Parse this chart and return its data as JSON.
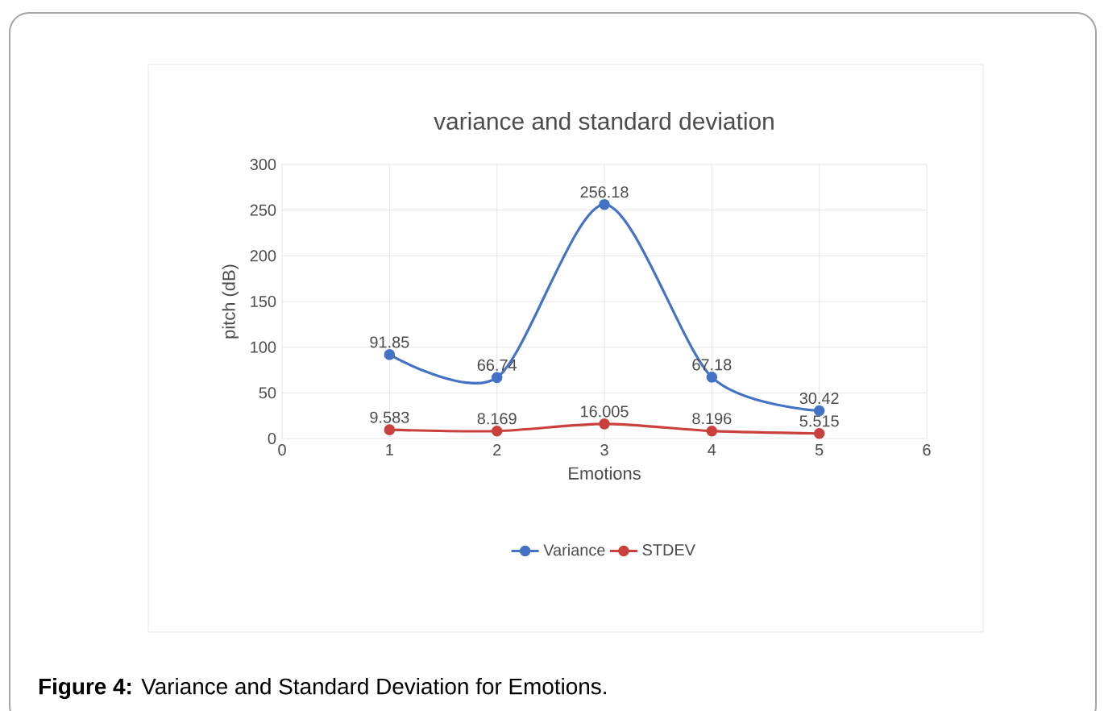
{
  "chart_data": {
    "type": "line",
    "title": "variance and standard deviation",
    "xlabel": "Emotions",
    "ylabel": "pitch (dB)",
    "x": [
      1,
      2,
      3,
      4,
      5
    ],
    "series": [
      {
        "name": "Variance",
        "color": "#4472c4",
        "values": [
          91.85,
          66.74,
          256.18,
          67.18,
          30.42
        ],
        "value_labels": [
          "91.85",
          "66.74",
          "256.18",
          "67.18",
          "30.42"
        ]
      },
      {
        "name": "STDEV",
        "color": "#c9403c",
        "values": [
          9.583,
          8.169,
          16.005,
          8.196,
          5.515
        ],
        "value_labels": [
          "9.583",
          "8.169",
          "16.005",
          "8.196",
          "5.515"
        ]
      }
    ],
    "xlim": [
      0,
      6
    ],
    "xticks": [
      0,
      1,
      2,
      3,
      4,
      5,
      6
    ],
    "ylim": [
      0,
      300
    ],
    "yticks": [
      0,
      50,
      100,
      150,
      200,
      250,
      300
    ],
    "grid": true,
    "legend": "bottom",
    "marker": "circle",
    "line_style": "solid",
    "annotations": [
      "**Figure 4:** Variance and Standard Deviation for Emotions."
    ]
  }
}
